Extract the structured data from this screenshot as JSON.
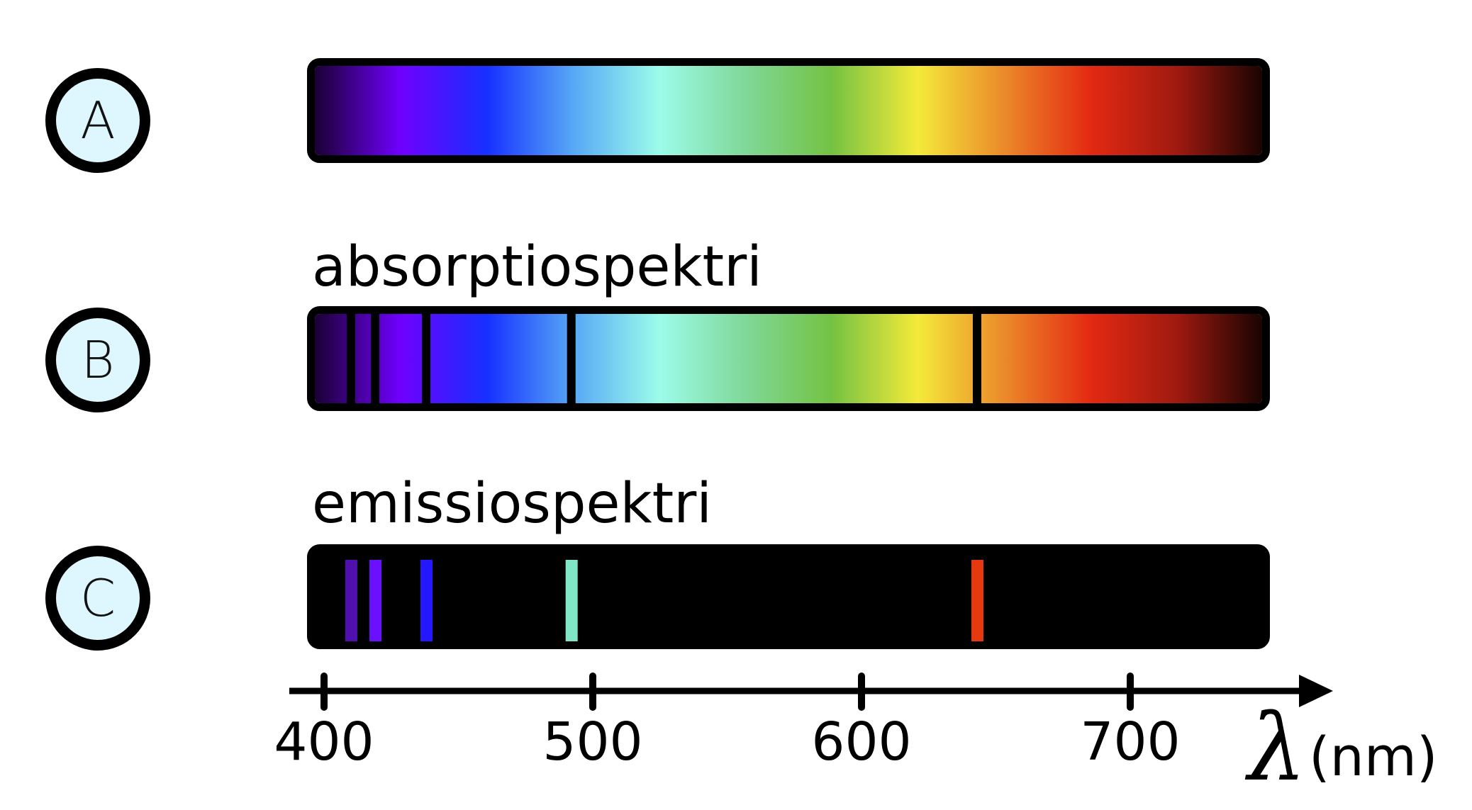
{
  "colors": {
    "circle_fill": "#def6fd",
    "stroke": "#000000",
    "spectrum_stops": [
      "#1a0033",
      "#7000ff",
      "#1630ff",
      "#57a8f5",
      "#9cfcea",
      "#7fd898",
      "#74c243",
      "#f4ea3a",
      "#eb8a2a",
      "#e32a12",
      "#a01a10",
      "#1a0402"
    ]
  },
  "rows": [
    {
      "id": "A",
      "letter": "A",
      "title": "",
      "type": "continuous"
    },
    {
      "id": "B",
      "letter": "B",
      "title": "absorptiospektri",
      "type": "absorption"
    },
    {
      "id": "C",
      "letter": "C",
      "title": "emissiospektri",
      "type": "emission"
    }
  ],
  "lines_nm": [
    410,
    419,
    438,
    492,
    643
  ],
  "emission_colors": [
    "#5010b0",
    "#6a10ff",
    "#2418ff",
    "#7fe6c6",
    "#e53a10"
  ],
  "axis": {
    "ticks": [
      "400",
      "500",
      "600",
      "700"
    ],
    "tick_values": [
      400,
      500,
      600,
      700
    ],
    "symbol": "λ",
    "unit": "(nm)"
  }
}
